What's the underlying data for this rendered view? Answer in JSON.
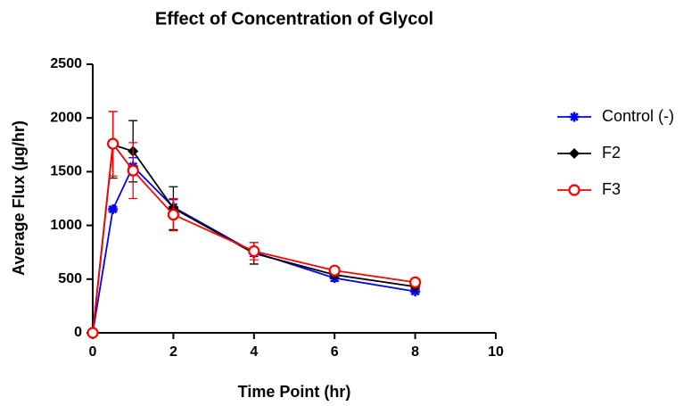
{
  "chart_data": {
    "type": "line",
    "title": "Effect of Concentration of Glycol",
    "xlabel": "Time Point (hr)",
    "ylabel": "Average Flux (µg/hr)",
    "x": [
      0,
      0.5,
      1,
      2,
      4,
      6,
      8
    ],
    "series": [
      {
        "name": "Control (-)",
        "color": "#0000ff",
        "marker": "star",
        "values": [
          0,
          1150,
          1550,
          1170,
          750,
          510,
          385
        ],
        "errors": [
          0,
          20,
          80,
          70,
          40,
          30,
          20
        ]
      },
      {
        "name": "F2",
        "color": "#000000",
        "marker": "diamond",
        "values": [
          0,
          1750,
          1690,
          1160,
          740,
          540,
          430
        ],
        "errors": [
          0,
          310,
          285,
          200,
          100,
          30,
          20
        ]
      },
      {
        "name": "F3",
        "color": "#ff0000",
        "marker": "circle",
        "values": [
          0,
          1760,
          1510,
          1100,
          760,
          580,
          470
        ],
        "errors": [
          0,
          300,
          260,
          150,
          80,
          30,
          20
        ]
      }
    ],
    "xlim": [
      0,
      10
    ],
    "xticks": [
      0,
      2,
      4,
      6,
      8,
      10
    ],
    "ylim": [
      0,
      2500
    ],
    "yticks": [
      0,
      500,
      1000,
      1500,
      2000,
      2500
    ],
    "legend": "right"
  }
}
